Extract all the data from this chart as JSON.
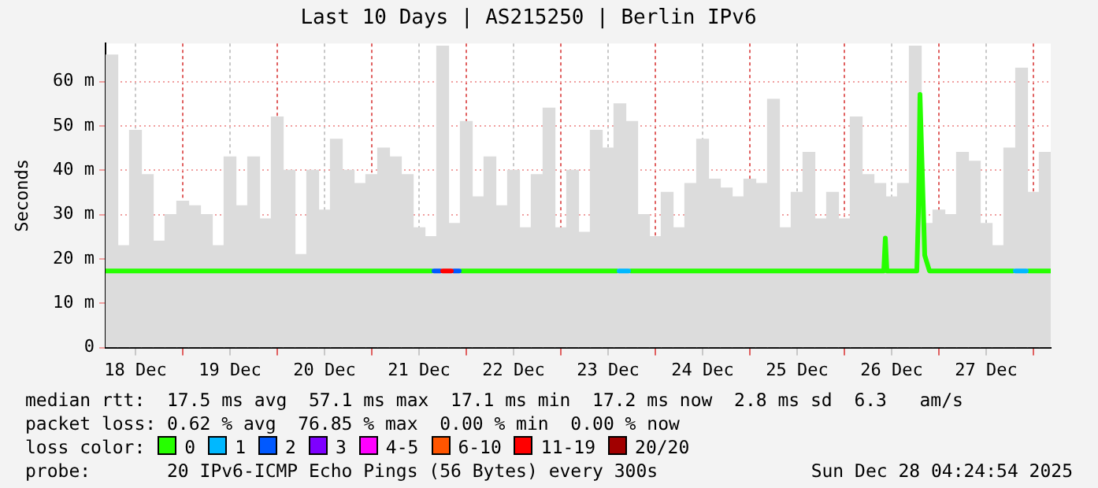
{
  "chart_data": {
    "type": "line",
    "title": "Last 10 Days | AS215250 | Berlin IPv6",
    "ylabel": "Seconds",
    "legend_title": "loss color:",
    "legend": "bottom",
    "marker": "none",
    "grid": true,
    "xlim": [
      "2025-12-18T04:24",
      "2025-12-28T04:24"
    ],
    "xticks": [
      {
        "value": "2025-12-18T12:00",
        "label": "18 Dec"
      },
      {
        "value": "2025-12-19T00:00",
        "label": null
      },
      {
        "value": "2025-12-19T12:00",
        "label": "19 Dec"
      },
      {
        "value": "2025-12-20T00:00",
        "label": null
      },
      {
        "value": "2025-12-20T12:00",
        "label": "20 Dec"
      },
      {
        "value": "2025-12-21T00:00",
        "label": null
      },
      {
        "value": "2025-12-21T12:00",
        "label": "21 Dec"
      },
      {
        "value": "2025-12-22T00:00",
        "label": null
      },
      {
        "value": "2025-12-22T12:00",
        "label": "22 Dec"
      },
      {
        "value": "2025-12-23T00:00",
        "label": null
      },
      {
        "value": "2025-12-23T12:00",
        "label": "23 Dec"
      },
      {
        "value": "2025-12-24T00:00",
        "label": null
      },
      {
        "value": "2025-12-24T12:00",
        "label": "24 Dec"
      },
      {
        "value": "2025-12-25T00:00",
        "label": null
      },
      {
        "value": "2025-12-25T12:00",
        "label": "25 Dec"
      },
      {
        "value": "2025-12-26T00:00",
        "label": null
      },
      {
        "value": "2025-12-26T12:00",
        "label": "26 Dec"
      },
      {
        "value": "2025-12-27T00:00",
        "label": null
      },
      {
        "value": "2025-12-27T12:00",
        "label": "27 Dec"
      },
      {
        "value": "2025-12-28T00:00",
        "label": null
      }
    ],
    "ylim": [
      0,
      68.6
    ],
    "yticks": [
      0,
      {
        "value": 10,
        "label": "10 m"
      },
      {
        "value": 20,
        "label": "20 m"
      },
      {
        "value": 30,
        "label": "30 m"
      },
      {
        "value": 40,
        "label": "40 m"
      },
      {
        "value": 50,
        "label": "50 m"
      },
      {
        "value": 60,
        "label": "60 m"
      }
    ],
    "annotations": [
      "median rtt:  17.5 ms avg  57.1 ms max  17.1 ms min  17.2 ms now  2.8 ms sd  6.3   am/s",
      "packet loss: 0.62 % avg  76.85 % max  0.00 % min  0.00 % now",
      "probe:       20 IPv6-ICMP Echo Pings (56 Bytes) every 300s",
      "Sun Dec 28 04:24:54 2025"
    ],
    "series": [
      {
        "type": "bar",
        "color": "#dcdcdc",
        "x": [
          "2025-12-18T06:00",
          "2025-12-18T09:00",
          "2025-12-18T12:00",
          "2025-12-18T15:00",
          "2025-12-18T18:00",
          "2025-12-18T21:00",
          "2025-12-19T00:00",
          "2025-12-19T03:00",
          "2025-12-19T06:00",
          "2025-12-19T09:00",
          "2025-12-19T12:00",
          "2025-12-19T15:00",
          "2025-12-19T18:00",
          "2025-12-19T21:00",
          "2025-12-20T00:00",
          "2025-12-20T03:00",
          "2025-12-20T06:00",
          "2025-12-20T09:00",
          "2025-12-20T12:00",
          "2025-12-20T15:00",
          "2025-12-20T18:00",
          "2025-12-20T21:00",
          "2025-12-21T00:00",
          "2025-12-21T03:00",
          "2025-12-21T06:00",
          "2025-12-21T09:00",
          "2025-12-21T12:00",
          "2025-12-21T15:00",
          "2025-12-21T18:00",
          "2025-12-21T21:00",
          "2025-12-22T00:00",
          "2025-12-22T03:00",
          "2025-12-22T06:00",
          "2025-12-22T09:00",
          "2025-12-22T12:00",
          "2025-12-22T15:00",
          "2025-12-22T18:00",
          "2025-12-22T21:00",
          "2025-12-23T00:00",
          "2025-12-23T03:00",
          "2025-12-23T06:00",
          "2025-12-23T09:00",
          "2025-12-23T12:00",
          "2025-12-23T15:00",
          "2025-12-23T18:00",
          "2025-12-23T21:00",
          "2025-12-24T00:00",
          "2025-12-24T03:00",
          "2025-12-24T06:00",
          "2025-12-24T09:00",
          "2025-12-24T12:00",
          "2025-12-24T15:00",
          "2025-12-24T18:00",
          "2025-12-24T21:00",
          "2025-12-25T00:00",
          "2025-12-25T03:00",
          "2025-12-25T06:00",
          "2025-12-25T09:00",
          "2025-12-25T12:00",
          "2025-12-25T15:00",
          "2025-12-25T18:00",
          "2025-12-25T21:00",
          "2025-12-26T00:00",
          "2025-12-26T03:00",
          "2025-12-26T06:00",
          "2025-12-26T09:00",
          "2025-12-26T12:00",
          "2025-12-26T15:00",
          "2025-12-26T18:00",
          "2025-12-26T21:00",
          "2025-12-27T00:00",
          "2025-12-27T03:00",
          "2025-12-27T06:00",
          "2025-12-27T09:00",
          "2025-12-27T12:00",
          "2025-12-27T15:00",
          "2025-12-27T18:00",
          "2025-12-27T21:00",
          "2025-12-28T00:00",
          "2025-12-28T03:00"
        ],
        "values": [
          66,
          23,
          49,
          39,
          24,
          30,
          33,
          32,
          30,
          23,
          43,
          32,
          43,
          29,
          52,
          40,
          21,
          40,
          31,
          47,
          40,
          37,
          39,
          45,
          43,
          39,
          27,
          25,
          68,
          28,
          51,
          34,
          43,
          32,
          40,
          27,
          39,
          54,
          27,
          40,
          26,
          49,
          45,
          55,
          51,
          30,
          25,
          35,
          27,
          37,
          47,
          38,
          36,
          34,
          38,
          37,
          56,
          27,
          35,
          44,
          29,
          35,
          29,
          52,
          39,
          37,
          34,
          37,
          68,
          28,
          31,
          30,
          44,
          42,
          28,
          23,
          45,
          63,
          35,
          44
        ]
      },
      {
        "name": "0",
        "color": "#26ff00",
        "x": [
          "2025-12-18T04:24",
          "2025-12-21T15:12",
          "2025-12-21T19:00",
          "2025-12-21T22:48",
          "2025-12-23T14:12",
          "2025-12-23T16:00",
          "2025-12-23T17:48",
          "2025-12-26T10:00",
          "2025-12-26T10:24",
          "2025-12-26T10:48",
          "2025-12-26T18:24",
          "2025-12-26T18:48",
          "2025-12-26T19:12",
          "2025-12-26T20:24",
          "2025-12-26T21:36",
          "2025-12-27T18:48",
          "2025-12-27T21:00",
          "2025-12-27T22:48",
          "2025-12-28T04:24"
        ],
        "values": [
          17.3,
          17.3,
          null,
          17.3,
          17.3,
          null,
          17.3,
          17.3,
          24.7,
          17.3,
          17.3,
          30.6,
          57.1,
          20.8,
          17.3,
          17.3,
          null,
          17.3,
          17.3
        ]
      },
      {
        "name": "1",
        "color": "#00b8ff",
        "x": [
          "2025-12-23T14:48",
          "2025-12-23T17:12",
          "2025-12-25T00:00",
          "2025-12-27T19:24",
          "2025-12-27T22:12"
        ],
        "values": [
          17.3,
          17.3,
          null,
          17.3,
          17.3
        ]
      },
      {
        "name": "2",
        "color": "#0059ff",
        "x": [
          "2025-12-21T15:48",
          "2025-12-21T17:24",
          "2025-12-21T19:00",
          "2025-12-21T20:48",
          "2025-12-21T22:12"
        ],
        "values": [
          17.3,
          17.3,
          null,
          17.3,
          17.3
        ]
      },
      {
        "name": "3",
        "color": "#7e00ff"
      },
      {
        "name": "4-5",
        "color": "#ff00ff"
      },
      {
        "name": "6-10",
        "color": "#ff5500"
      },
      {
        "name": "11-19",
        "color": "#ff0000",
        "x": [
          "2025-12-21T18:00",
          "2025-12-21T20:12"
        ],
        "values": [
          17.3,
          17.3
        ]
      },
      {
        "name": "20/20",
        "color": "#a10000"
      }
    ]
  }
}
